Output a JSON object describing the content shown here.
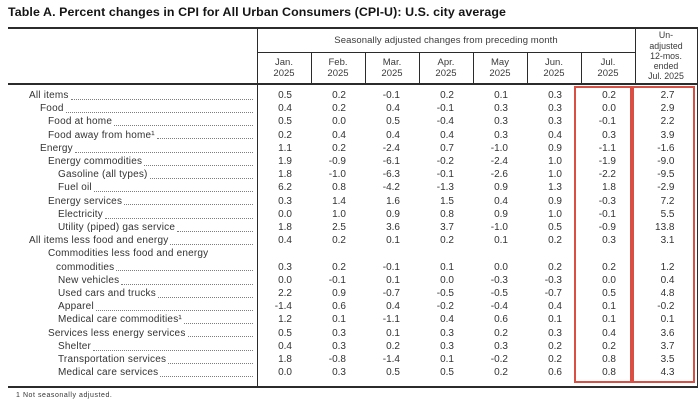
{
  "title": "Table A. Percent changes in CPI for All Urban Consumers (CPI-U): U.S. city average",
  "footnote": "1  Not seasonally adjusted.",
  "highlight_color": "#d94f43",
  "table": {
    "group_header": "Seasonally adjusted changes from preceding month",
    "unadjusted_header": "Un-\nadjusted\n12-mos.\nended\nJul. 2025",
    "months": [
      "Jan.\n2025",
      "Feb.\n2025",
      "Mar.\n2025",
      "Apr.\n2025",
      "May\n2025",
      "Jun.\n2025",
      "Jul.\n2025"
    ],
    "rows": [
      {
        "label": "All items",
        "indent": 0,
        "values": [
          "0.5",
          "0.2",
          "-0.1",
          "0.2",
          "0.1",
          "0.3",
          "0.2",
          "2.7"
        ]
      },
      {
        "label": "Food",
        "indent": 1,
        "values": [
          "0.4",
          "0.2",
          "0.4",
          "-0.1",
          "0.3",
          "0.3",
          "0.0",
          "2.9"
        ]
      },
      {
        "label": "Food at home",
        "indent": 2,
        "values": [
          "0.5",
          "0.0",
          "0.5",
          "-0.4",
          "0.3",
          "0.3",
          "-0.1",
          "2.2"
        ]
      },
      {
        "label": "Food away from home¹",
        "indent": 2,
        "values": [
          "0.2",
          "0.4",
          "0.4",
          "0.4",
          "0.3",
          "0.4",
          "0.3",
          "3.9"
        ]
      },
      {
        "label": "Energy",
        "indent": 1,
        "values": [
          "1.1",
          "0.2",
          "-2.4",
          "0.7",
          "-1.0",
          "0.9",
          "-1.1",
          "-1.6"
        ]
      },
      {
        "label": "Energy commodities",
        "indent": 2,
        "values": [
          "1.9",
          "-0.9",
          "-6.1",
          "-0.2",
          "-2.4",
          "1.0",
          "-1.9",
          "-9.0"
        ]
      },
      {
        "label": "Gasoline (all types)",
        "indent": 3,
        "values": [
          "1.8",
          "-1.0",
          "-6.3",
          "-0.1",
          "-2.6",
          "1.0",
          "-2.2",
          "-9.5"
        ]
      },
      {
        "label": "Fuel oil",
        "indent": 3,
        "values": [
          "6.2",
          "0.8",
          "-4.2",
          "-1.3",
          "0.9",
          "1.3",
          "1.8",
          "-2.9"
        ]
      },
      {
        "label": "Energy services",
        "indent": 2,
        "values": [
          "0.3",
          "1.4",
          "1.6",
          "1.5",
          "0.4",
          "0.9",
          "-0.3",
          "7.2"
        ]
      },
      {
        "label": "Electricity",
        "indent": 3,
        "values": [
          "0.0",
          "1.0",
          "0.9",
          "0.8",
          "0.9",
          "1.0",
          "-0.1",
          "5.5"
        ]
      },
      {
        "label": "Utility (piped) gas service",
        "indent": 3,
        "values": [
          "1.8",
          "2.5",
          "3.6",
          "3.7",
          "-1.0",
          "0.5",
          "-0.9",
          "13.8"
        ]
      },
      {
        "label": "All items less food and energy",
        "indent": 0,
        "values": [
          "0.4",
          "0.2",
          "0.1",
          "0.2",
          "0.1",
          "0.2",
          "0.3",
          "3.1"
        ]
      },
      {
        "label_lines": [
          "Commodities less food and energy",
          "commodities"
        ],
        "indent": 2,
        "values": [
          "0.3",
          "0.2",
          "-0.1",
          "0.1",
          "0.0",
          "0.2",
          "0.2",
          "1.2"
        ]
      },
      {
        "label": "New vehicles",
        "indent": 3,
        "values": [
          "0.0",
          "-0.1",
          "0.1",
          "0.0",
          "-0.3",
          "-0.3",
          "0.0",
          "0.4"
        ]
      },
      {
        "label": "Used cars and trucks",
        "indent": 3,
        "values": [
          "2.2",
          "0.9",
          "-0.7",
          "-0.5",
          "-0.5",
          "-0.7",
          "0.5",
          "4.8"
        ]
      },
      {
        "label": "Apparel",
        "indent": 3,
        "values": [
          "-1.4",
          "0.6",
          "0.4",
          "-0.2",
          "-0.4",
          "0.4",
          "0.1",
          "-0.2"
        ]
      },
      {
        "label": "Medical care commodities¹",
        "indent": 3,
        "values": [
          "1.2",
          "0.1",
          "-1.1",
          "0.4",
          "0.6",
          "0.1",
          "0.1",
          "0.1"
        ]
      },
      {
        "label": "Services less energy services",
        "indent": 2,
        "values": [
          "0.5",
          "0.3",
          "0.1",
          "0.3",
          "0.2",
          "0.3",
          "0.4",
          "3.6"
        ]
      },
      {
        "label": "Shelter",
        "indent": 3,
        "values": [
          "0.4",
          "0.3",
          "0.2",
          "0.3",
          "0.3",
          "0.2",
          "0.2",
          "3.7"
        ]
      },
      {
        "label": "Transportation services",
        "indent": 3,
        "values": [
          "1.8",
          "-0.8",
          "-1.4",
          "0.1",
          "-0.2",
          "0.2",
          "0.8",
          "3.5"
        ]
      },
      {
        "label": "Medical care services",
        "indent": 3,
        "values": [
          "0.0",
          "0.3",
          "0.5",
          "0.5",
          "0.2",
          "0.6",
          "0.8",
          "4.3"
        ]
      }
    ]
  }
}
